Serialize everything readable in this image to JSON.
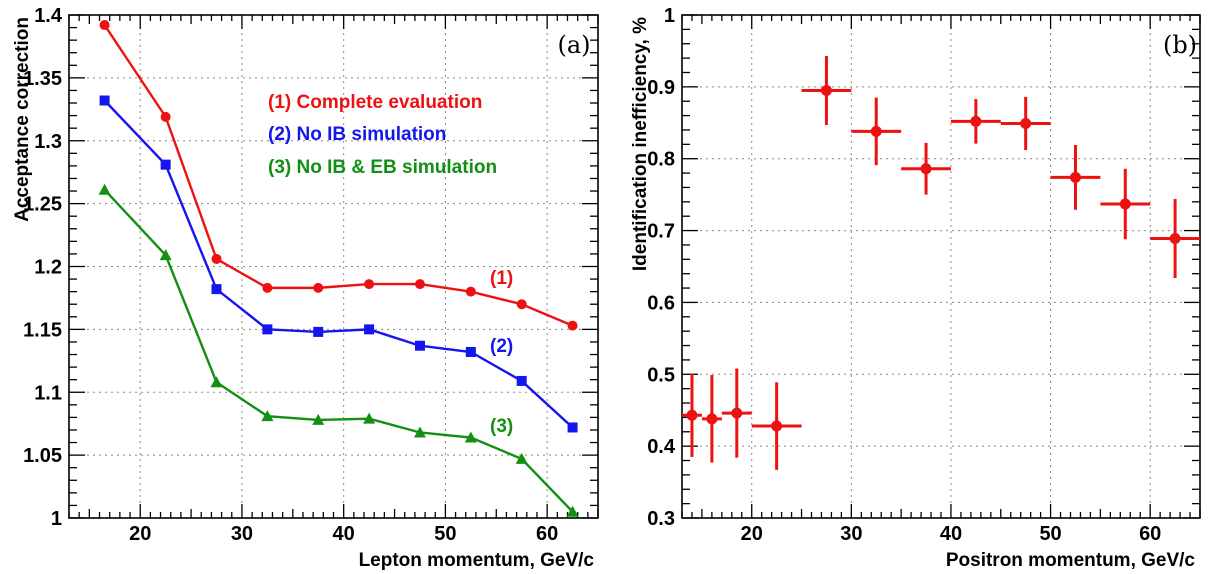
{
  "chart_data": [
    {
      "type": "line",
      "panel_label": "(a)",
      "xlabel": "Lepton momentum, GeV/c",
      "ylabel": "Acceptance correction",
      "xlim": [
        13,
        65
      ],
      "ylim": [
        1.0,
        1.4
      ],
      "xticks": [
        20,
        30,
        40,
        50,
        60
      ],
      "xtick_labels": [
        "20",
        "30",
        "40",
        "50",
        "60"
      ],
      "yticks": [
        1.0,
        1.05,
        1.1,
        1.15,
        1.2,
        1.25,
        1.3,
        1.35,
        1.4
      ],
      "ytick_labels": [
        "1",
        "1.05",
        "1.1",
        "1.15",
        "1.2",
        "1.25",
        "1.3",
        "1.35",
        "1.4"
      ],
      "grid": true,
      "legend_position": "top-right",
      "x": [
        16.5,
        22.5,
        27.5,
        32.5,
        37.5,
        42.5,
        47.5,
        52.5,
        57.5,
        62.5
      ],
      "series": [
        {
          "name": "(1) Complete evaluation",
          "label": "(1)",
          "color": "#ee1111",
          "marker": "circle",
          "values": [
            1.392,
            1.319,
            1.206,
            1.183,
            1.183,
            1.186,
            1.186,
            1.18,
            1.17,
            1.153
          ]
        },
        {
          "name": "(2) No IB simulation",
          "label": "(2)",
          "color": "#1515ee",
          "marker": "square",
          "values": [
            1.332,
            1.281,
            1.182,
            1.15,
            1.148,
            1.15,
            1.137,
            1.132,
            1.109,
            1.072
          ]
        },
        {
          "name": "(3) No IB & EB simulation",
          "label": "(3)",
          "color": "#129012",
          "marker": "triangle",
          "values": [
            1.261,
            1.209,
            1.108,
            1.081,
            1.078,
            1.079,
            1.068,
            1.064,
            1.047,
            1.005
          ]
        }
      ]
    },
    {
      "type": "scatter",
      "panel_label": "(b)",
      "xlabel": "Positron momentum, GeV/c",
      "ylabel": "Identification inefficiency, %",
      "xlim": [
        13,
        65
      ],
      "ylim": [
        0.3,
        1.0
      ],
      "xticks": [
        20,
        30,
        40,
        50,
        60
      ],
      "xtick_labels": [
        "20",
        "30",
        "40",
        "50",
        "60"
      ],
      "yticks": [
        0.3,
        0.4,
        0.5,
        0.6,
        0.7,
        0.8,
        0.9,
        1.0
      ],
      "ytick_labels": [
        "0.3",
        "0.4",
        "0.5",
        "0.6",
        "0.7",
        "0.8",
        "0.9",
        "1"
      ],
      "grid": true,
      "color": "#ee1111",
      "points": [
        {
          "x": 14,
          "y": 0.443,
          "xerr_low": 1,
          "xerr_high": 1,
          "yerr": 0.058
        },
        {
          "x": 16,
          "y": 0.438,
          "xerr_low": 1,
          "xerr_high": 1,
          "yerr": 0.061
        },
        {
          "x": 18.5,
          "y": 0.446,
          "xerr_low": 1.5,
          "xerr_high": 1.5,
          "yerr": 0.062
        },
        {
          "x": 22.5,
          "y": 0.428,
          "xerr_low": 2.5,
          "xerr_high": 2.5,
          "yerr": 0.061
        },
        {
          "x": 27.5,
          "y": 0.895,
          "xerr_low": 2.5,
          "xerr_high": 2.5,
          "yerr": 0.048
        },
        {
          "x": 32.5,
          "y": 0.838,
          "xerr_low": 2.5,
          "xerr_high": 2.5,
          "yerr": 0.047
        },
        {
          "x": 37.5,
          "y": 0.786,
          "xerr_low": 2.5,
          "xerr_high": 2.5,
          "yerr": 0.036
        },
        {
          "x": 42.5,
          "y": 0.852,
          "xerr_low": 2.5,
          "xerr_high": 2.5,
          "yerr": 0.031
        },
        {
          "x": 47.5,
          "y": 0.849,
          "xerr_low": 2.5,
          "xerr_high": 2.5,
          "yerr": 0.037
        },
        {
          "x": 52.5,
          "y": 0.774,
          "xerr_low": 2.5,
          "xerr_high": 2.5,
          "yerr": 0.045
        },
        {
          "x": 57.5,
          "y": 0.737,
          "xerr_low": 2.5,
          "xerr_high": 2.5,
          "yerr": 0.049
        },
        {
          "x": 62.5,
          "y": 0.689,
          "xerr_low": 2.5,
          "xerr_high": 2.5,
          "yerr": 0.055
        }
      ]
    }
  ]
}
